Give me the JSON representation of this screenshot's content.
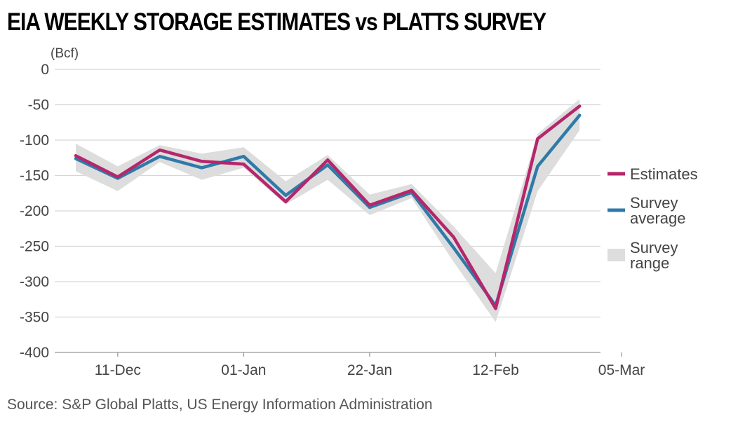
{
  "title": "EIA WEEKLY STORAGE ESTIMATES vs PLATTS SURVEY",
  "source": "Source: S&P Global Platts, US Energy Information Administration",
  "chart_data": {
    "type": "line",
    "unit_label": "(Bcf)",
    "ylim": [
      -400,
      0
    ],
    "yticks": [
      0,
      -50,
      -100,
      -150,
      -200,
      -250,
      -300,
      -350,
      -400
    ],
    "x_tick_labels": [
      "11-Dec",
      "01-Jan",
      "22-Jan",
      "12-Feb",
      "05-Mar"
    ],
    "x_tick_weeks": [
      1,
      4,
      7,
      10,
      13
    ],
    "weeks": [
      "4-Dec",
      "11-Dec",
      "18-Dec",
      "25-Dec",
      "01-Jan",
      "08-Jan",
      "15-Jan",
      "22-Jan",
      "29-Jan",
      "05-Feb",
      "12-Feb",
      "19-Feb",
      "26-Feb"
    ],
    "grid": true,
    "legend_position": "right",
    "series": [
      {
        "name": "Estimates",
        "color": "#b5266b",
        "values": [
          -122,
          -152,
          -114,
          -130,
          -134,
          -187,
          -128,
          -192,
          -171,
          -237,
          -338,
          -98,
          -52
        ]
      },
      {
        "name": "Survey average",
        "color": "#2f7aa8",
        "values": [
          -126,
          -154,
          -123,
          -139,
          -123,
          -178,
          -135,
          -195,
          -174,
          -252,
          -334,
          -137,
          -65
        ]
      }
    ],
    "range": {
      "name": "Survey range",
      "color": "#dddddd",
      "low": [
        -144,
        -172,
        -131,
        -156,
        -139,
        -191,
        -156,
        -206,
        -182,
        -272,
        -357,
        -172,
        -86
      ],
      "high": [
        -105,
        -137,
        -107,
        -119,
        -110,
        -158,
        -121,
        -177,
        -162,
        -222,
        -288,
        -91,
        -42
      ]
    },
    "legend_labels": [
      {
        "key": "estimates",
        "lines": [
          "Estimates"
        ],
        "color": "#b5266b",
        "kind": "line"
      },
      {
        "key": "survey_average",
        "lines": [
          "Survey",
          "average"
        ],
        "color": "#2f7aa8",
        "kind": "line"
      },
      {
        "key": "survey_range",
        "lines": [
          "Survey",
          "range"
        ],
        "color": "#dddddd",
        "kind": "band"
      }
    ]
  }
}
